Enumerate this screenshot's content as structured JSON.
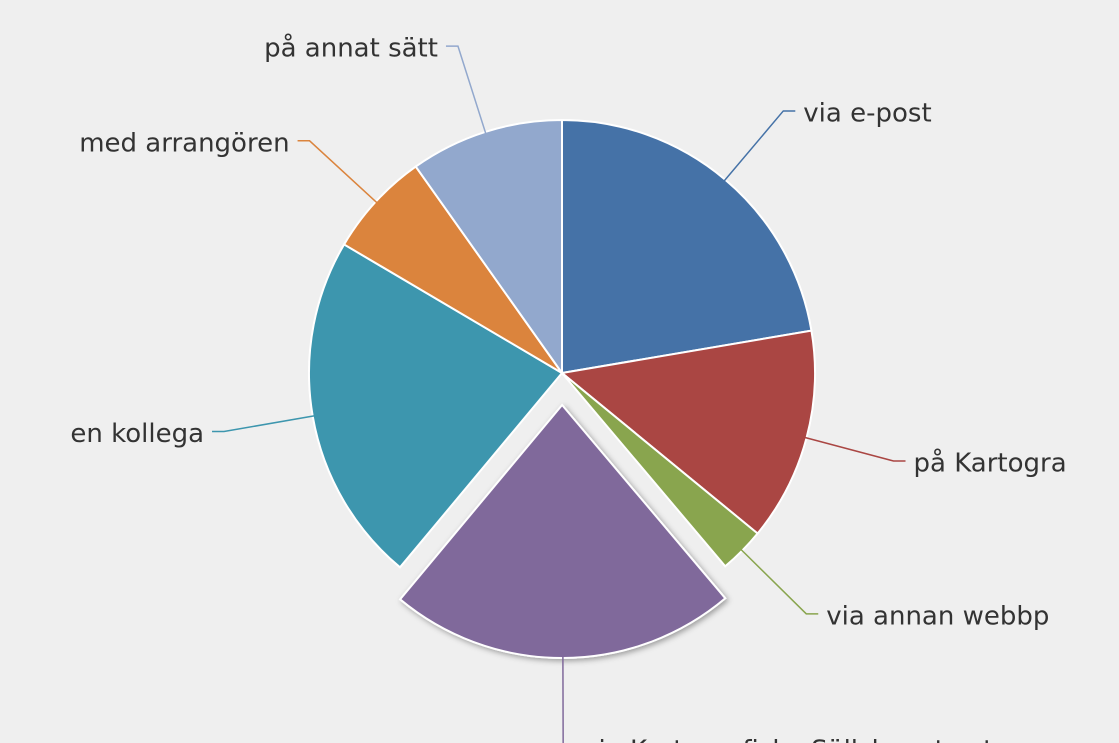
{
  "chart_data": {
    "type": "pie",
    "categories": [
      "via e-post",
      "på Kartogra",
      "via annan webbp",
      "via Kartografiska Sällskapets uts",
      "en kollega",
      "med arrangören",
      "på annat sätt"
    ],
    "values": [
      22.3,
      13.6,
      2.9,
      22.2,
      22.4,
      6.7,
      9.8
    ],
    "colors": [
      "#4572a7",
      "#aa4643",
      "#89a54e",
      "#80699b",
      "#3d96ae",
      "#db843d",
      "#92a8cd"
    ],
    "exploded": [
      3
    ]
  }
}
